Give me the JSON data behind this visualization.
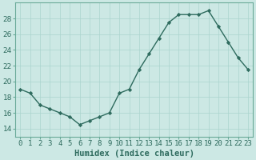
{
  "x": [
    0,
    1,
    2,
    3,
    4,
    5,
    6,
    7,
    8,
    9,
    10,
    11,
    12,
    13,
    14,
    15,
    16,
    17,
    18,
    19,
    20,
    21,
    22,
    23
  ],
  "y": [
    19,
    18.5,
    17,
    16.5,
    16,
    15.5,
    14.5,
    15,
    15.5,
    16,
    18.5,
    19,
    21.5,
    23.5,
    25.5,
    27.5,
    28.5,
    28.5,
    28.5,
    29,
    27,
    25,
    23,
    21.5
  ],
  "line_color": "#2e6b5e",
  "marker": "D",
  "markersize": 2.2,
  "linewidth": 1.0,
  "xlabel": "Humidex (Indice chaleur)",
  "xlim": [
    -0.5,
    23.5
  ],
  "ylim": [
    13,
    30
  ],
  "yticks": [
    14,
    16,
    18,
    20,
    22,
    24,
    26,
    28
  ],
  "xtick_labels": [
    "0",
    "1",
    "2",
    "3",
    "4",
    "5",
    "6",
    "7",
    "8",
    "9",
    "10",
    "11",
    "12",
    "13",
    "14",
    "15",
    "16",
    "17",
    "18",
    "19",
    "20",
    "21",
    "22",
    "23"
  ],
  "bg_color": "#cce8e4",
  "grid_color": "#aad4ce",
  "xlabel_fontsize": 7.5,
  "tick_fontsize": 6.5
}
